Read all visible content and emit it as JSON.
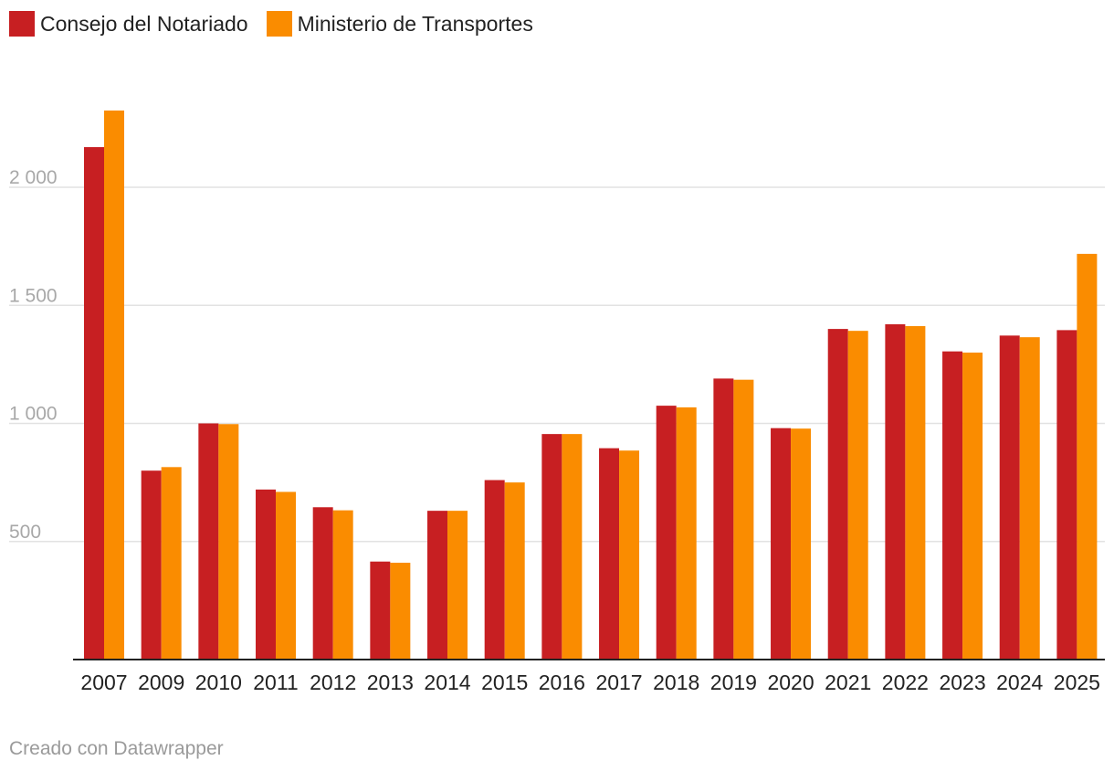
{
  "legend": {
    "series_a": "Consejo del Notariado",
    "series_b": "Ministerio de Transportes"
  },
  "colors": {
    "series_a": "#c71f22",
    "series_b": "#fa8c00",
    "grid": "#e2e2e2",
    "axis": "#222222",
    "ytick": "#a8a8a8",
    "xtick": "#222222"
  },
  "footer": "Creado con Datawrapper",
  "chart_data": {
    "type": "bar",
    "title": "",
    "xlabel": "",
    "ylabel": "",
    "ylim": [
      0,
      2330
    ],
    "yticks": [
      500,
      1000,
      1500,
      2000
    ],
    "ytick_labels": [
      "500",
      "1 000",
      "1 500",
      "2 000"
    ],
    "categories": [
      "2007",
      "2009",
      "2010",
      "2011",
      "2012",
      "2013",
      "2014",
      "2015",
      "2016",
      "2017",
      "2018",
      "2019",
      "2020",
      "2021",
      "2022",
      "2023",
      "2024",
      "2025"
    ],
    "series": [
      {
        "name": "Consejo del Notariado",
        "values": [
          2170,
          800,
          1000,
          720,
          645,
          415,
          630,
          760,
          955,
          895,
          1075,
          1190,
          980,
          1400,
          1420,
          1305,
          1372,
          1395
        ]
      },
      {
        "name": "Ministerio de Transportes",
        "values": [
          2325,
          815,
          997,
          710,
          632,
          410,
          630,
          750,
          955,
          885,
          1068,
          1185,
          978,
          1392,
          1412,
          1300,
          1365,
          1718
        ]
      }
    ],
    "legend_position": "top-left"
  }
}
